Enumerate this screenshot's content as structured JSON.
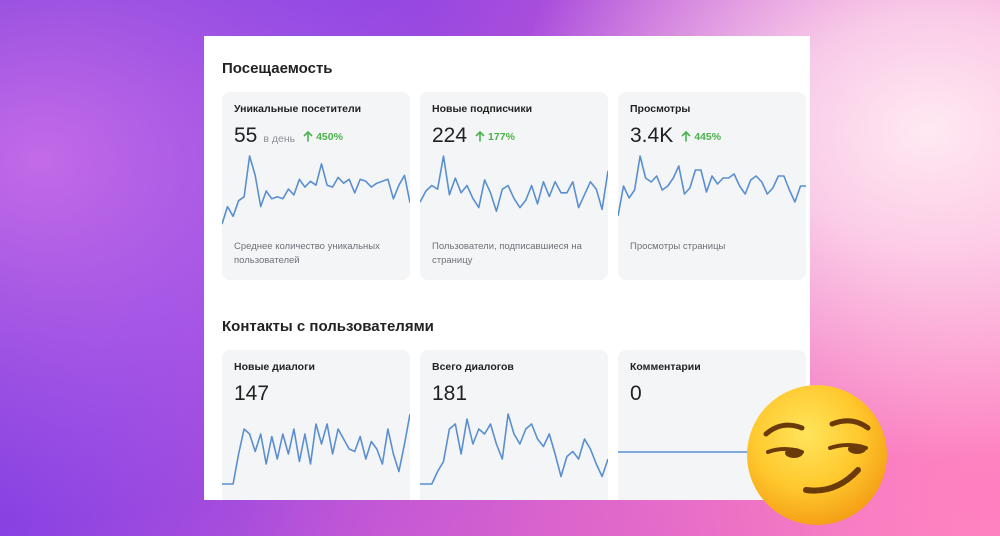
{
  "sections": [
    {
      "title": "Посещаемость",
      "cards": [
        {
          "label": "Уникальные посетители",
          "value": "55",
          "unit": "в день",
          "delta": "450%",
          "description": "Среднее количество уникальных пользователей",
          "series": [
            1,
            10,
            5,
            13,
            15,
            36,
            26,
            10,
            18,
            14,
            15,
            14,
            19,
            16,
            24,
            20,
            23,
            21,
            32,
            21,
            20,
            25,
            22,
            24,
            17,
            24,
            23,
            20,
            22,
            23,
            24,
            14,
            21,
            26,
            12
          ]
        },
        {
          "label": "Новые подписчики",
          "value": "224",
          "unit": "",
          "delta": "177%",
          "description": "Пользователи, подписавшиеся на страницу",
          "series": [
            13,
            19,
            22,
            20,
            38,
            17,
            26,
            18,
            22,
            15,
            10,
            25,
            18,
            8,
            20,
            22,
            15,
            10,
            14,
            22,
            12,
            24,
            16,
            24,
            18,
            18,
            24,
            10,
            17,
            24,
            20,
            9,
            30
          ]
        },
        {
          "label": "Просмотры",
          "value": "3.4K",
          "unit": "",
          "delta": "445%",
          "description": "Просмотры страницы",
          "series": [
            5,
            20,
            14,
            18,
            35,
            24,
            22,
            25,
            18,
            20,
            24,
            30,
            16,
            19,
            28,
            28,
            17,
            25,
            21,
            24,
            24,
            26,
            20,
            16,
            23,
            25,
            22,
            16,
            19,
            25,
            25,
            18,
            12,
            20,
            20
          ]
        }
      ]
    },
    {
      "title": "Контакты с пользователями",
      "cards": [
        {
          "label": "Новые диалоги",
          "value": "147",
          "unit": "",
          "delta": "",
          "description": "",
          "series": [
            0,
            0,
            0,
            12,
            22,
            20,
            13,
            20,
            8,
            19,
            10,
            20,
            12,
            22,
            9,
            20,
            8,
            24,
            16,
            24,
            12,
            22,
            18,
            14,
            13,
            19,
            10,
            17,
            14,
            8,
            22,
            12,
            5,
            16,
            28
          ]
        },
        {
          "label": "Всего диалогов",
          "value": "181",
          "unit": "",
          "delta": "",
          "description": "",
          "series": [
            0,
            0,
            0,
            5,
            9,
            22,
            24,
            12,
            26,
            16,
            22,
            20,
            24,
            16,
            10,
            28,
            20,
            16,
            22,
            24,
            18,
            15,
            20,
            12,
            3,
            11,
            13,
            10,
            18,
            14,
            8,
            3,
            10
          ]
        },
        {
          "label": "Комментарии",
          "value": "0",
          "unit": "",
          "delta": "",
          "description": "",
          "series": [
            0,
            0
          ]
        }
      ]
    }
  ],
  "colors": {
    "line": "#5a8fcf",
    "delta": "#4bb34b",
    "card_bg": "#f4f5f7"
  },
  "icons": {
    "delta_icon": "arrow-up-icon",
    "overlay_emoji": "smirking-face-emoji"
  }
}
